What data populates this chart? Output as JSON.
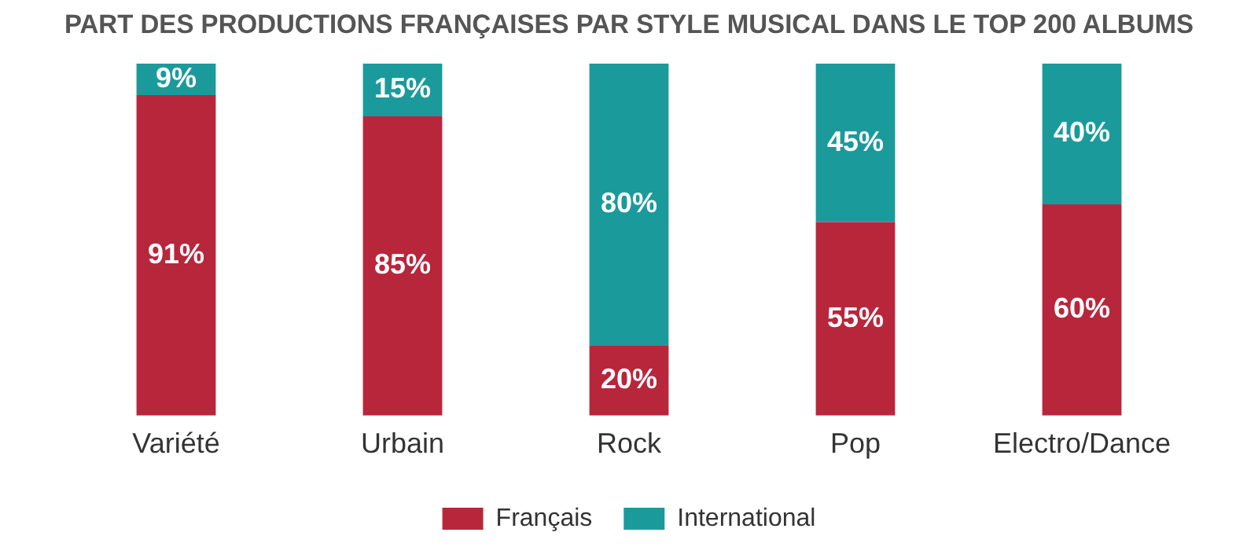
{
  "chart_data": {
    "type": "bar",
    "title": "PART DES PRODUCTIONS FRANÇAISES PAR STYLE MUSICAL DANS LE TOP 200 ALBUMS",
    "categories": [
      "Variété",
      "Urbain",
      "Rock",
      "Pop",
      "Electro/Dance"
    ],
    "stacked": true,
    "ylim": [
      0,
      100
    ],
    "tick_labels": "x",
    "grid": false,
    "legend": "bottom",
    "series": [
      {
        "name": "Français",
        "color": "#b8263c",
        "values": [
          91,
          85,
          20,
          55,
          60
        ],
        "value_labels": [
          "91%",
          "85%",
          "20%",
          "55%",
          "60%"
        ]
      },
      {
        "name": "International",
        "color": "#1b9a9c",
        "values": [
          9,
          15,
          80,
          45,
          40
        ],
        "value_labels": [
          "9%",
          "15%",
          "80%",
          "45%",
          "40%"
        ]
      }
    ]
  }
}
